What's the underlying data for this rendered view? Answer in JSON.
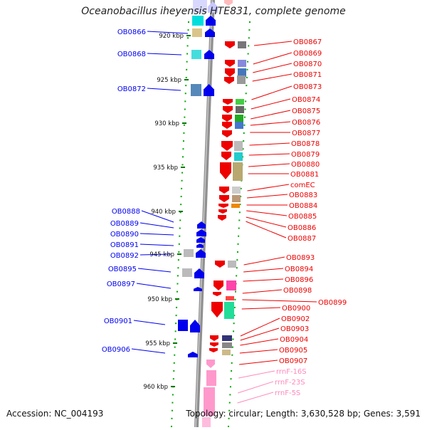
{
  "title": "Oceanobacillus iheyensis HTE831, complete genome",
  "accession": "Accession: NC_004193",
  "summary": "Topology: circular; Length: 3,630,528 bp; Genes: 3,591",
  "colors": {
    "plus_strand": "#0000ee",
    "minus_strand": "#ee0000",
    "rna": "#ff88bb",
    "dots": "#00aa00",
    "backbone": "#909090"
  },
  "ruler": [
    "920 kbp",
    "925 kbp",
    "930 kbp",
    "935 kbp",
    "940 kbp",
    "945 kbp",
    "950 kbp",
    "955 kbp",
    "960 kbp"
  ],
  "left_labels": [
    "OB0866",
    "OB0868",
    "OB0872",
    "OB0888",
    "OB0889",
    "OB0890",
    "OB0891",
    "OB0892",
    "OB0895",
    "OB0897",
    "OB0901",
    "OB0906"
  ],
  "right_labels": [
    "OB0867",
    "OB0869",
    "OB0870",
    "OB0871",
    "OB0873",
    "OB0874",
    "OB0875",
    "OB0876",
    "OB0877",
    "OB0878",
    "OB0879",
    "OB0880",
    "OB0881",
    "comEC",
    "OB0883",
    "OB0884",
    "OB0885",
    "OB0886",
    "OB0887",
    "OB0893",
    "OB0894",
    "OB0896",
    "OB0898",
    "OB0899",
    "OB0900",
    "OB0902",
    "OB0903",
    "OB0904",
    "OB0905",
    "OB0907",
    "rrnF-16S",
    "rrnF-23S",
    "rrnF-5S"
  ]
}
